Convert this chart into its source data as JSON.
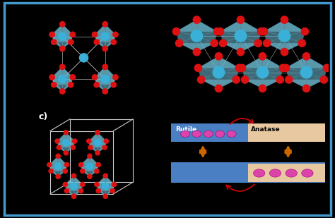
{
  "background_color": "#000000",
  "border_color": "#4499cc",
  "border_lw": 2.5,
  "fig_width": 4.74,
  "fig_height": 3.09,
  "rutile_label": "Rutile",
  "anatase_label": "Anatase",
  "label_c": "c)",
  "rutile_bar_color": "#4a7fc4",
  "anatase_bar_color": "#e8c8a0",
  "dot_color": "#dd44aa",
  "arrow_color": "#cc6600",
  "red_arrow_color": "#cc0000",
  "ti_color": "#3ab0d8",
  "o_color": "#dd1111",
  "oct_face_color": "#70c0d8",
  "oct_face_alpha": 0.55,
  "line_color": "#558899",
  "panel_top_left_bg": "#ffffff",
  "panel_top_right_bg": "#ffffff",
  "panel_bot_left_bg": "#ffffff"
}
